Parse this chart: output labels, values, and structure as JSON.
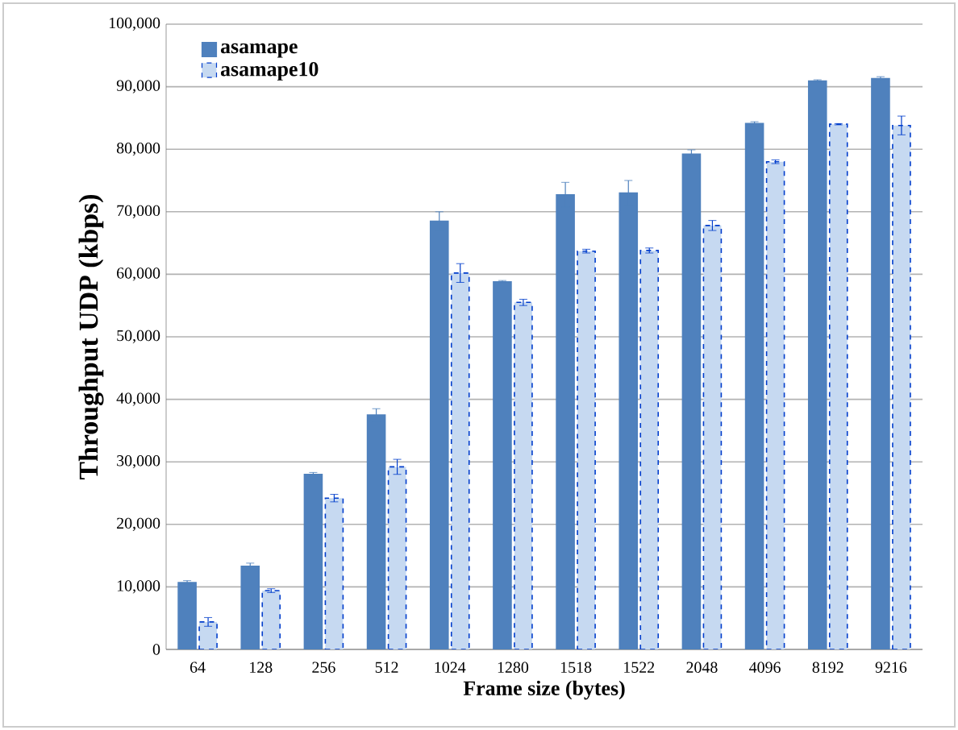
{
  "chart_data": {
    "type": "bar",
    "xlabel": "Frame size (bytes)",
    "ylabel": "Throughput UDP (kbps)",
    "categories": [
      "64",
      "128",
      "256",
      "512",
      "1024",
      "1280",
      "1518",
      "1522",
      "2048",
      "4096",
      "8192",
      "9216"
    ],
    "series": [
      {
        "name": "asamape",
        "color": "#4f81bd",
        "values": [
          10700,
          13300,
          28000,
          37500,
          68500,
          58800,
          72700,
          73000,
          79200,
          84100,
          90900,
          91300
        ],
        "errors": [
          300,
          500,
          300,
          1000,
          1500,
          200,
          2000,
          2000,
          700,
          300,
          200,
          300
        ]
      },
      {
        "name": "asamape10",
        "color": "#c6d9f1",
        "line_style": "dashed",
        "values": [
          4400,
          9400,
          24200,
          29200,
          60200,
          55500,
          63700,
          63800,
          67800,
          78000,
          84000,
          83800
        ],
        "errors": [
          700,
          300,
          600,
          1200,
          1500,
          500,
          300,
          400,
          800,
          300,
          100,
          1500
        ]
      }
    ],
    "ylim": [
      0,
      100000
    ],
    "yticks": [
      0,
      {
        "value": 10000,
        "label": "10,000"
      },
      {
        "value": 20000,
        "label": "20,000"
      },
      {
        "value": 30000,
        "label": "30,000"
      },
      {
        "value": 40000,
        "label": "40,000"
      },
      {
        "value": 50000,
        "label": "50,000"
      },
      {
        "value": 60000,
        "label": "60,000"
      },
      {
        "value": 70000,
        "label": "70,000"
      },
      {
        "value": 80000,
        "label": "80,000"
      },
      {
        "value": 90000,
        "label": "90,000"
      },
      {
        "value": 100000,
        "label": "100,000"
      }
    ],
    "grid": "y",
    "legend": "top left"
  }
}
